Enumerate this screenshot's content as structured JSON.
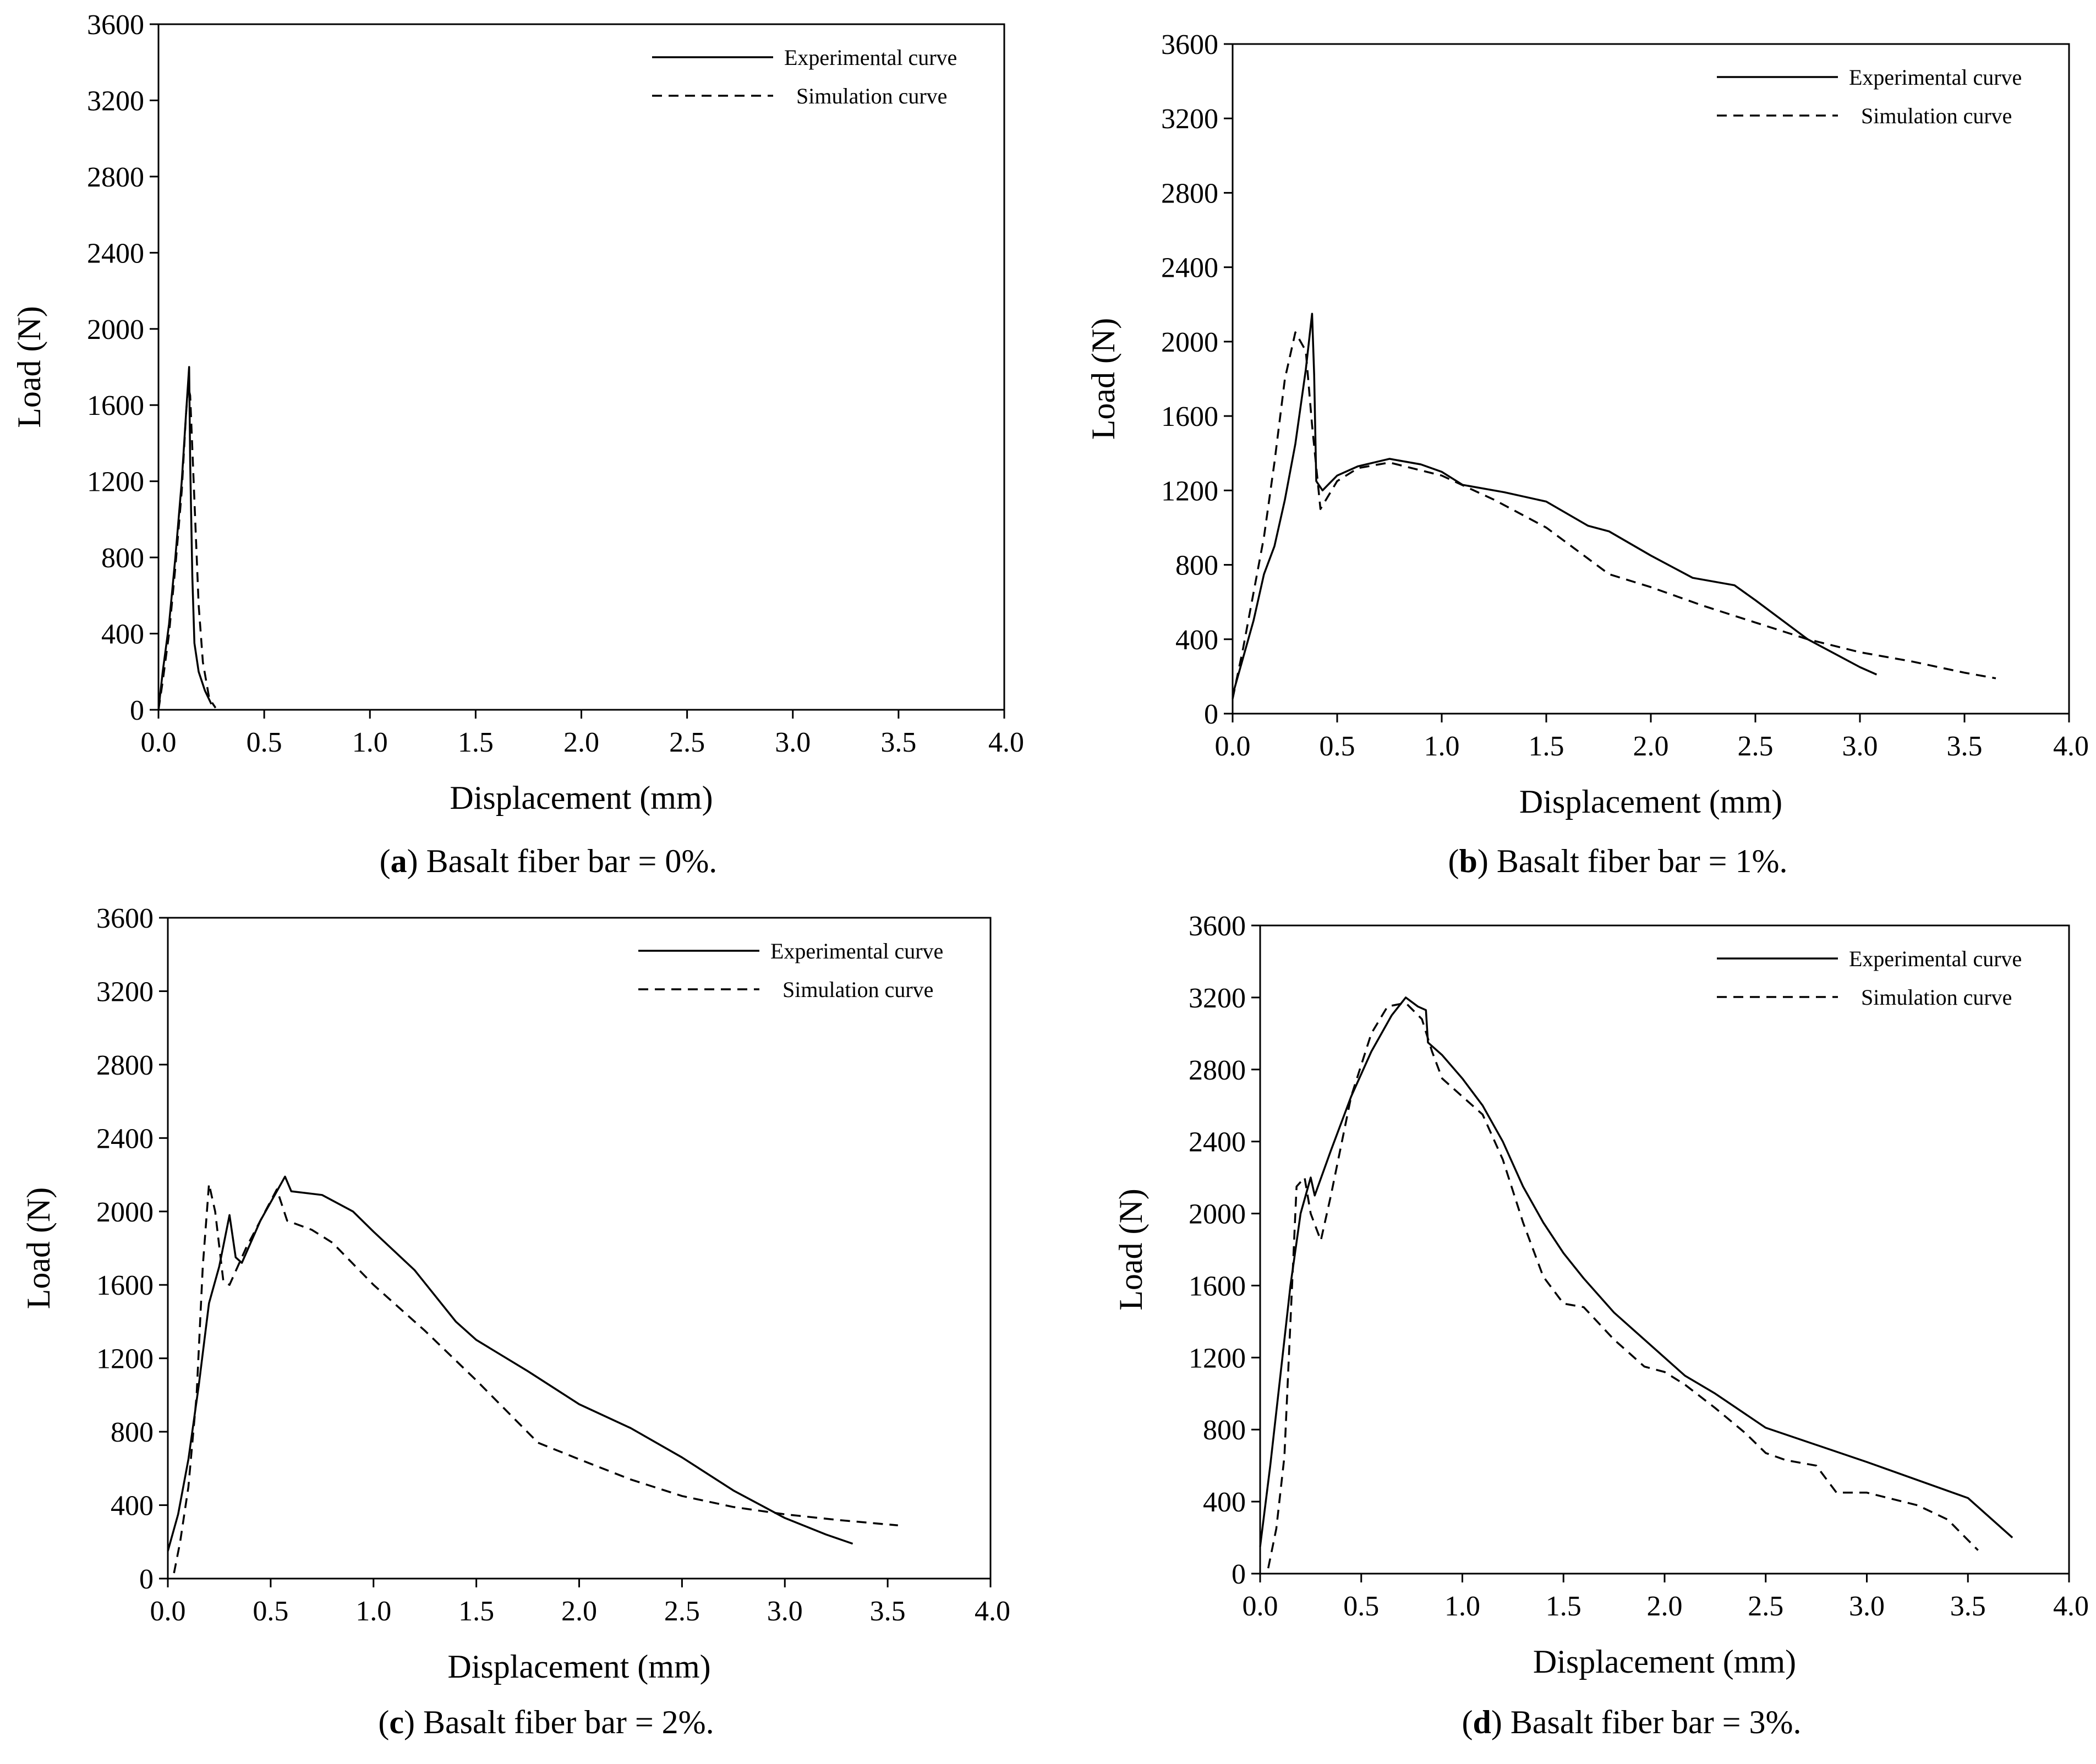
{
  "chart_data": [
    {
      "type": "line",
      "panel": "a",
      "caption_letter": "a",
      "caption_text": "Basalt fiber bar = 0%.",
      "xlabel": "Displacement (mm)",
      "ylabel": "Load  (N)",
      "xlim": [
        0,
        4.0
      ],
      "ylim": [
        0,
        3600
      ],
      "x_ticks": [
        "0.0",
        "0.5",
        "1.0",
        "1.5",
        "2.0",
        "2.5",
        "3.0",
        "3.5",
        "4.0"
      ],
      "y_ticks": [
        "0",
        "400",
        "800",
        "1200",
        "1600",
        "2000",
        "2400",
        "2800",
        "3200",
        "3600"
      ],
      "legend_position": "top-right",
      "series": [
        {
          "name": "Experimental curve",
          "style": "solid",
          "points": [
            [
              0.0,
              0
            ],
            [
              0.02,
              200
            ],
            [
              0.05,
              450
            ],
            [
              0.08,
              800
            ],
            [
              0.11,
              1200
            ],
            [
              0.13,
              1550
            ],
            [
              0.145,
              1800
            ],
            [
              0.15,
              1300
            ],
            [
              0.16,
              700
            ],
            [
              0.17,
              350
            ],
            [
              0.19,
              200
            ],
            [
              0.22,
              100
            ],
            [
              0.25,
              30
            ]
          ]
        },
        {
          "name": "Simulation curve",
          "style": "dashed",
          "points": [
            [
              0.0,
              0
            ],
            [
              0.02,
              150
            ],
            [
              0.05,
              400
            ],
            [
              0.08,
              750
            ],
            [
              0.11,
              1150
            ],
            [
              0.13,
              1550
            ],
            [
              0.14,
              1700
            ],
            [
              0.15,
              1650
            ],
            [
              0.17,
              1100
            ],
            [
              0.19,
              550
            ],
            [
              0.21,
              250
            ],
            [
              0.24,
              60
            ],
            [
              0.27,
              10
            ]
          ]
        }
      ]
    },
    {
      "type": "line",
      "panel": "b",
      "caption_letter": "b",
      "caption_text": "Basalt fiber bar = 1%.",
      "xlabel": "Displacement (mm)",
      "ylabel": "Load  (N)",
      "xlim": [
        0,
        4.0
      ],
      "ylim": [
        0,
        3600
      ],
      "x_ticks": [
        "0.0",
        "0.5",
        "1.0",
        "1.5",
        "2.0",
        "2.5",
        "3.0",
        "3.5",
        "4.0"
      ],
      "y_ticks": [
        "0",
        "400",
        "800",
        "1200",
        "1600",
        "2000",
        "2400",
        "2800",
        "3200",
        "3600"
      ],
      "legend_position": "top-right",
      "series": [
        {
          "name": "Experimental curve",
          "style": "solid",
          "points": [
            [
              0.0,
              100
            ],
            [
              0.05,
              300
            ],
            [
              0.1,
              500
            ],
            [
              0.15,
              750
            ],
            [
              0.2,
              900
            ],
            [
              0.25,
              1150
            ],
            [
              0.3,
              1450
            ],
            [
              0.35,
              1850
            ],
            [
              0.38,
              2150
            ],
            [
              0.39,
              1820
            ],
            [
              0.4,
              1250
            ],
            [
              0.43,
              1200
            ],
            [
              0.5,
              1280
            ],
            [
              0.6,
              1330
            ],
            [
              0.75,
              1370
            ],
            [
              0.9,
              1340
            ],
            [
              1.0,
              1300
            ],
            [
              1.1,
              1230
            ],
            [
              1.3,
              1190
            ],
            [
              1.5,
              1140
            ],
            [
              1.7,
              1010
            ],
            [
              1.8,
              980
            ],
            [
              2.0,
              850
            ],
            [
              2.2,
              730
            ],
            [
              2.4,
              690
            ],
            [
              2.5,
              610
            ],
            [
              2.75,
              400
            ],
            [
              3.0,
              250
            ],
            [
              3.08,
              210
            ]
          ]
        },
        {
          "name": "Simulation curve",
          "style": "dashed",
          "points": [
            [
              0.0,
              80
            ],
            [
              0.05,
              350
            ],
            [
              0.1,
              650
            ],
            [
              0.15,
              950
            ],
            [
              0.2,
              1350
            ],
            [
              0.25,
              1800
            ],
            [
              0.3,
              2050
            ],
            [
              0.35,
              1950
            ],
            [
              0.38,
              1550
            ],
            [
              0.42,
              1100
            ],
            [
              0.5,
              1250
            ],
            [
              0.6,
              1320
            ],
            [
              0.75,
              1350
            ],
            [
              1.0,
              1280
            ],
            [
              1.25,
              1150
            ],
            [
              1.5,
              1000
            ],
            [
              1.8,
              750
            ],
            [
              2.0,
              680
            ],
            [
              2.25,
              580
            ],
            [
              2.5,
              490
            ],
            [
              2.75,
              400
            ],
            [
              3.0,
              330
            ],
            [
              3.25,
              280
            ],
            [
              3.5,
              220
            ],
            [
              3.65,
              190
            ]
          ]
        }
      ]
    },
    {
      "type": "line",
      "panel": "c",
      "caption_letter": "c",
      "caption_text": "Basalt fiber bar = 2%.",
      "xlabel": "Displacement (mm)",
      "ylabel": "Load  (N)",
      "xlim": [
        0,
        4.0
      ],
      "ylim": [
        0,
        3600
      ],
      "x_ticks": [
        "0.0",
        "0.5",
        "1.0",
        "1.5",
        "2.0",
        "2.5",
        "3.0",
        "3.5",
        "4.0"
      ],
      "y_ticks": [
        "0",
        "400",
        "800",
        "1200",
        "1600",
        "2000",
        "2400",
        "2800",
        "3200",
        "3600"
      ],
      "legend_position": "top-right",
      "series": [
        {
          "name": "Experimental curve",
          "style": "solid",
          "points": [
            [
              0.0,
              150
            ],
            [
              0.05,
              350
            ],
            [
              0.1,
              650
            ],
            [
              0.15,
              1050
            ],
            [
              0.2,
              1500
            ],
            [
              0.25,
              1700
            ],
            [
              0.3,
              1980
            ],
            [
              0.33,
              1750
            ],
            [
              0.36,
              1720
            ],
            [
              0.45,
              1950
            ],
            [
              0.5,
              2050
            ],
            [
              0.57,
              2190
            ],
            [
              0.6,
              2110
            ],
            [
              0.75,
              2090
            ],
            [
              0.9,
              2000
            ],
            [
              1.0,
              1890
            ],
            [
              1.2,
              1680
            ],
            [
              1.4,
              1400
            ],
            [
              1.5,
              1300
            ],
            [
              1.75,
              1130
            ],
            [
              2.0,
              950
            ],
            [
              2.25,
              820
            ],
            [
              2.5,
              660
            ],
            [
              2.75,
              480
            ],
            [
              3.0,
              330
            ],
            [
              3.2,
              240
            ],
            [
              3.33,
              190
            ]
          ]
        },
        {
          "name": "Simulation curve",
          "style": "dashed",
          "points": [
            [
              0.03,
              30
            ],
            [
              0.06,
              200
            ],
            [
              0.1,
              500
            ],
            [
              0.14,
              1000
            ],
            [
              0.17,
              1700
            ],
            [
              0.2,
              2150
            ],
            [
              0.23,
              2000
            ],
            [
              0.27,
              1620
            ],
            [
              0.3,
              1600
            ],
            [
              0.38,
              1800
            ],
            [
              0.45,
              1950
            ],
            [
              0.53,
              2120
            ],
            [
              0.58,
              1950
            ],
            [
              0.7,
              1900
            ],
            [
              0.8,
              1830
            ],
            [
              1.0,
              1600
            ],
            [
              1.25,
              1350
            ],
            [
              1.5,
              1080
            ],
            [
              1.8,
              740
            ],
            [
              2.0,
              650
            ],
            [
              2.25,
              540
            ],
            [
              2.5,
              450
            ],
            [
              2.75,
              390
            ],
            [
              3.0,
              350
            ],
            [
              3.25,
              320
            ],
            [
              3.55,
              290
            ]
          ]
        }
      ]
    },
    {
      "type": "line",
      "panel": "d",
      "caption_letter": "d",
      "caption_text": "Basalt fiber bar = 3%.",
      "xlabel": "Displacement (mm)",
      "ylabel": "Load  (N)",
      "xlim": [
        0,
        4.0
      ],
      "ylim": [
        0,
        3600
      ],
      "x_ticks": [
        "0.0",
        "0.5",
        "1.0",
        "1.5",
        "2.0",
        "2.5",
        "3.0",
        "3.5",
        "4.0"
      ],
      "y_ticks": [
        "0",
        "400",
        "800",
        "1200",
        "1600",
        "2000",
        "2400",
        "2800",
        "3200",
        "3600"
      ],
      "legend_position": "top-right",
      "series": [
        {
          "name": "Experimental curve",
          "style": "solid",
          "points": [
            [
              0.0,
              150
            ],
            [
              0.05,
              600
            ],
            [
              0.1,
              1100
            ],
            [
              0.15,
              1600
            ],
            [
              0.2,
              2000
            ],
            [
              0.25,
              2200
            ],
            [
              0.27,
              2100
            ],
            [
              0.35,
              2350
            ],
            [
              0.45,
              2650
            ],
            [
              0.55,
              2900
            ],
            [
              0.65,
              3100
            ],
            [
              0.72,
              3200
            ],
            [
              0.78,
              3150
            ],
            [
              0.82,
              3130
            ],
            [
              0.83,
              2950
            ],
            [
              0.9,
              2880
            ],
            [
              1.0,
              2750
            ],
            [
              1.1,
              2600
            ],
            [
              1.2,
              2400
            ],
            [
              1.3,
              2150
            ],
            [
              1.4,
              1950
            ],
            [
              1.5,
              1780
            ],
            [
              1.6,
              1640
            ],
            [
              1.75,
              1450
            ],
            [
              2.0,
              1200
            ],
            [
              2.1,
              1100
            ],
            [
              2.25,
              1000
            ],
            [
              2.5,
              810
            ],
            [
              3.0,
              620
            ],
            [
              3.5,
              420
            ],
            [
              3.72,
              200
            ]
          ]
        },
        {
          "name": "Simulation curve",
          "style": "dashed",
          "points": [
            [
              0.04,
              30
            ],
            [
              0.08,
              250
            ],
            [
              0.12,
              650
            ],
            [
              0.15,
              1400
            ],
            [
              0.18,
              2150
            ],
            [
              0.22,
              2200
            ],
            [
              0.25,
              2000
            ],
            [
              0.3,
              1850
            ],
            [
              0.35,
              2100
            ],
            [
              0.45,
              2650
            ],
            [
              0.55,
              3000
            ],
            [
              0.63,
              3150
            ],
            [
              0.72,
              3170
            ],
            [
              0.8,
              3080
            ],
            [
              0.85,
              2900
            ],
            [
              0.9,
              2750
            ],
            [
              1.0,
              2650
            ],
            [
              1.1,
              2550
            ],
            [
              1.2,
              2300
            ],
            [
              1.3,
              1950
            ],
            [
              1.4,
              1650
            ],
            [
              1.5,
              1500
            ],
            [
              1.6,
              1480
            ],
            [
              1.75,
              1300
            ],
            [
              1.9,
              1150
            ],
            [
              2.0,
              1120
            ],
            [
              2.1,
              1050
            ],
            [
              2.25,
              920
            ],
            [
              2.4,
              780
            ],
            [
              2.5,
              670
            ],
            [
              2.6,
              630
            ],
            [
              2.75,
              600
            ],
            [
              2.85,
              450
            ],
            [
              3.0,
              450
            ],
            [
              3.25,
              380
            ],
            [
              3.4,
              300
            ],
            [
              3.55,
              130
            ]
          ]
        }
      ]
    }
  ]
}
